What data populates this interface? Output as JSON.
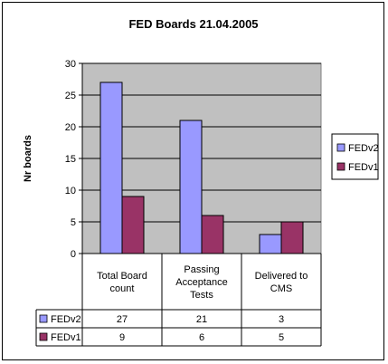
{
  "chart_data": {
    "type": "bar",
    "title": "FED Boards 21.04.2005",
    "ylabel": "Nr boards",
    "xlabel": "",
    "ylim": [
      0,
      30
    ],
    "yticks": [
      0,
      5,
      10,
      15,
      20,
      25,
      30
    ],
    "grid": true,
    "legend": "right",
    "categories": [
      [
        "Total Board",
        "count"
      ],
      [
        "Passing",
        "Acceptance",
        "Tests"
      ],
      [
        "Delivered to",
        "CMS"
      ]
    ],
    "series": [
      {
        "name": "FEDv2",
        "color": "#9999ff",
        "values": [
          27,
          21,
          3
        ]
      },
      {
        "name": "FEDv1",
        "color": "#993366",
        "values": [
          9,
          6,
          5
        ]
      }
    ],
    "plot_background": "#c0c0c0"
  }
}
